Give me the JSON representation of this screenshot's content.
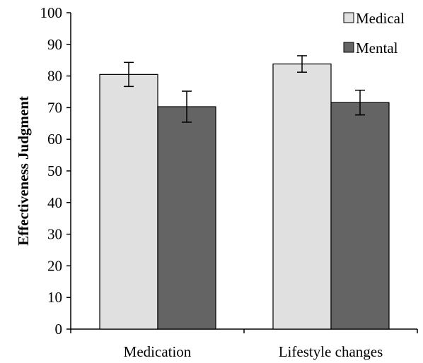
{
  "chart_data": {
    "type": "bar",
    "title": "",
    "xlabel": "",
    "ylabel": "Effectiveness Judgment",
    "ylim": [
      0,
      100
    ],
    "yticks": [
      0,
      10,
      20,
      30,
      40,
      50,
      60,
      70,
      80,
      90,
      100
    ],
    "categories": [
      "Medication",
      "Lifestyle changes"
    ],
    "series": [
      {
        "name": "Medical",
        "color": "#e0e0e0",
        "values": [
          80.5,
          83.8
        ],
        "error": [
          3.8,
          2.6
        ]
      },
      {
        "name": "Mental",
        "color": "#646464",
        "values": [
          70.3,
          71.6
        ],
        "error": [
          4.9,
          3.9
        ]
      }
    ],
    "legend_position": "top-right",
    "grid": false
  }
}
